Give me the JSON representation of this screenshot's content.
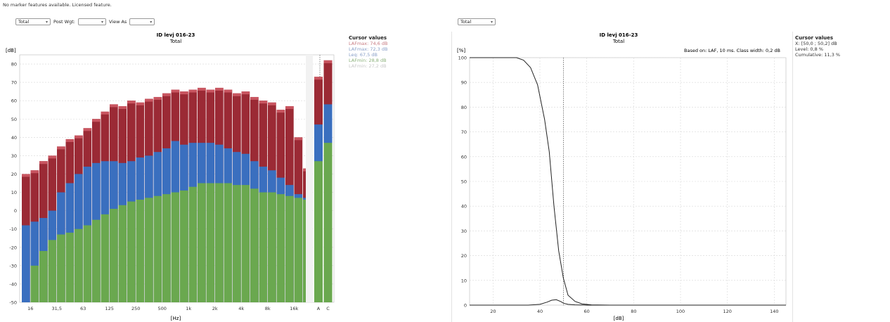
{
  "status_line": "No marker features available. Licensed feature.",
  "left": {
    "controls": {
      "total_value": "Total",
      "post_wgt_label": "Post Wgt:",
      "post_wgt_value": "",
      "view_as_label": "View As",
      "view_as_value": ""
    },
    "chart_title": "ID levj 016-23",
    "chart_subtitle": "Total",
    "ylabel": "[dB]",
    "xlabel": "[Hz]",
    "cursor_title": "Cursor values",
    "cursor_lines": [
      {
        "text": "LAFmax: 74,6 dB",
        "color": "#c77a80"
      },
      {
        "text": "LAFmax: 72,3 dB",
        "color": "#8aa0c8"
      },
      {
        "text": "Leq: 67,5 dB",
        "color": "#8aa0c8"
      },
      {
        "text": "LAFmin: 28,8 dB",
        "color": "#8ab07a"
      },
      {
        "text": "LAFmin: 27,2 dB",
        "color": "#c8c8c8"
      }
    ]
  },
  "right": {
    "controls": {
      "total_value": "Total"
    },
    "chart_title": "ID levj 016-23",
    "chart_subtitle": "Total",
    "annotation": "Based on: LAF, 10 ms. Class width: 0,2 dB",
    "ylabel": "[%]",
    "xlabel": "[dB]",
    "cursor_title": "Cursor values",
    "cursor_lines": [
      {
        "text": "X: [50,0 ; 50,2] dB",
        "color": "#333333"
      },
      {
        "text": "Level: 0,8 %",
        "color": "#333333"
      },
      {
        "text": "Cumulative: 11,3 %",
        "color": "#333333"
      }
    ]
  },
  "chart_data": [
    {
      "type": "bar",
      "title": "ID levj 016-23",
      "subtitle": "Total",
      "xlabel": "[Hz]",
      "ylabel": "[dB]",
      "ylim": [
        -50,
        85
      ],
      "yticks": [
        -50,
        -40,
        -30,
        -20,
        -10,
        0,
        10,
        20,
        30,
        40,
        50,
        60,
        70,
        80
      ],
      "xtick_labels": [
        "16",
        "31,5",
        "63",
        "125",
        "250",
        "500",
        "1k",
        "2k",
        "4k",
        "8k",
        "16k"
      ],
      "band_tick_labels": [
        "A",
        "C"
      ],
      "colors": {
        "top": "#9b2a35",
        "top_cap": "#c85560",
        "middle": "#3a6fbf",
        "bottom": "#6aa84f"
      },
      "bands": 33,
      "series": [
        {
          "name": "",
          "values": [
            20,
            22,
            27,
            30,
            35,
            39,
            41,
            45,
            50,
            54,
            58,
            57,
            60,
            59,
            61,
            62,
            64,
            66,
            65,
            66,
            67,
            66,
            67,
            66,
            64,
            65,
            62,
            60,
            59,
            55,
            57,
            40,
            23
          ]
        },
        {
          "name": "",
          "values": [
            -8,
            -6,
            -4,
            0,
            10,
            15,
            20,
            24,
            26,
            27,
            27,
            26,
            27,
            29,
            30,
            32,
            34,
            38,
            36,
            37,
            37,
            37,
            36,
            34,
            32,
            31,
            27,
            24,
            22,
            18,
            14,
            9,
            7
          ]
        },
        {
          "name": "",
          "values": [
            -50,
            -30,
            -22,
            -16,
            -13,
            -12,
            -10,
            -8,
            -5,
            -2,
            1,
            3,
            5,
            6,
            7,
            8,
            9,
            10,
            11,
            13,
            15,
            15,
            15,
            15,
            14,
            14,
            12,
            10,
            10,
            9,
            8,
            7,
            6
          ]
        }
      ],
      "band_values": [
        {
          "label": "A",
          "top": 73,
          "middle": 47,
          "bottom": 27
        },
        {
          "label": "C",
          "top": 82,
          "middle": 58,
          "bottom": 37
        }
      ]
    },
    {
      "type": "line",
      "title": "ID levj 016-23",
      "subtitle": "Total",
      "xlabel": "[dB]",
      "ylabel": "[%]",
      "xlim": [
        10,
        145
      ],
      "ylim": [
        0,
        100
      ],
      "xticks": [
        20,
        40,
        60,
        80,
        100,
        120,
        140
      ],
      "yticks": [
        0,
        10,
        20,
        30,
        40,
        50,
        60,
        70,
        80,
        90,
        100
      ],
      "cursor_x": 50.1,
      "series": [
        {
          "name": "",
          "x": [
            10,
            30,
            33,
            36,
            39,
            42,
            44,
            46,
            48,
            50,
            52,
            55,
            58,
            62,
            70,
            80,
            145
          ],
          "y": [
            100,
            100,
            99,
            96,
            89,
            75,
            62,
            40,
            22,
            11,
            4,
            1.5,
            0.5,
            0.1,
            0,
            0,
            0
          ]
        },
        {
          "name": "",
          "x": [
            10,
            35,
            40,
            43,
            45,
            47,
            49,
            50,
            52,
            55,
            60,
            145
          ],
          "y": [
            0,
            0,
            0.3,
            1.2,
            2.0,
            2.2,
            1.4,
            0.8,
            0.3,
            0.1,
            0,
            0
          ]
        }
      ]
    }
  ]
}
